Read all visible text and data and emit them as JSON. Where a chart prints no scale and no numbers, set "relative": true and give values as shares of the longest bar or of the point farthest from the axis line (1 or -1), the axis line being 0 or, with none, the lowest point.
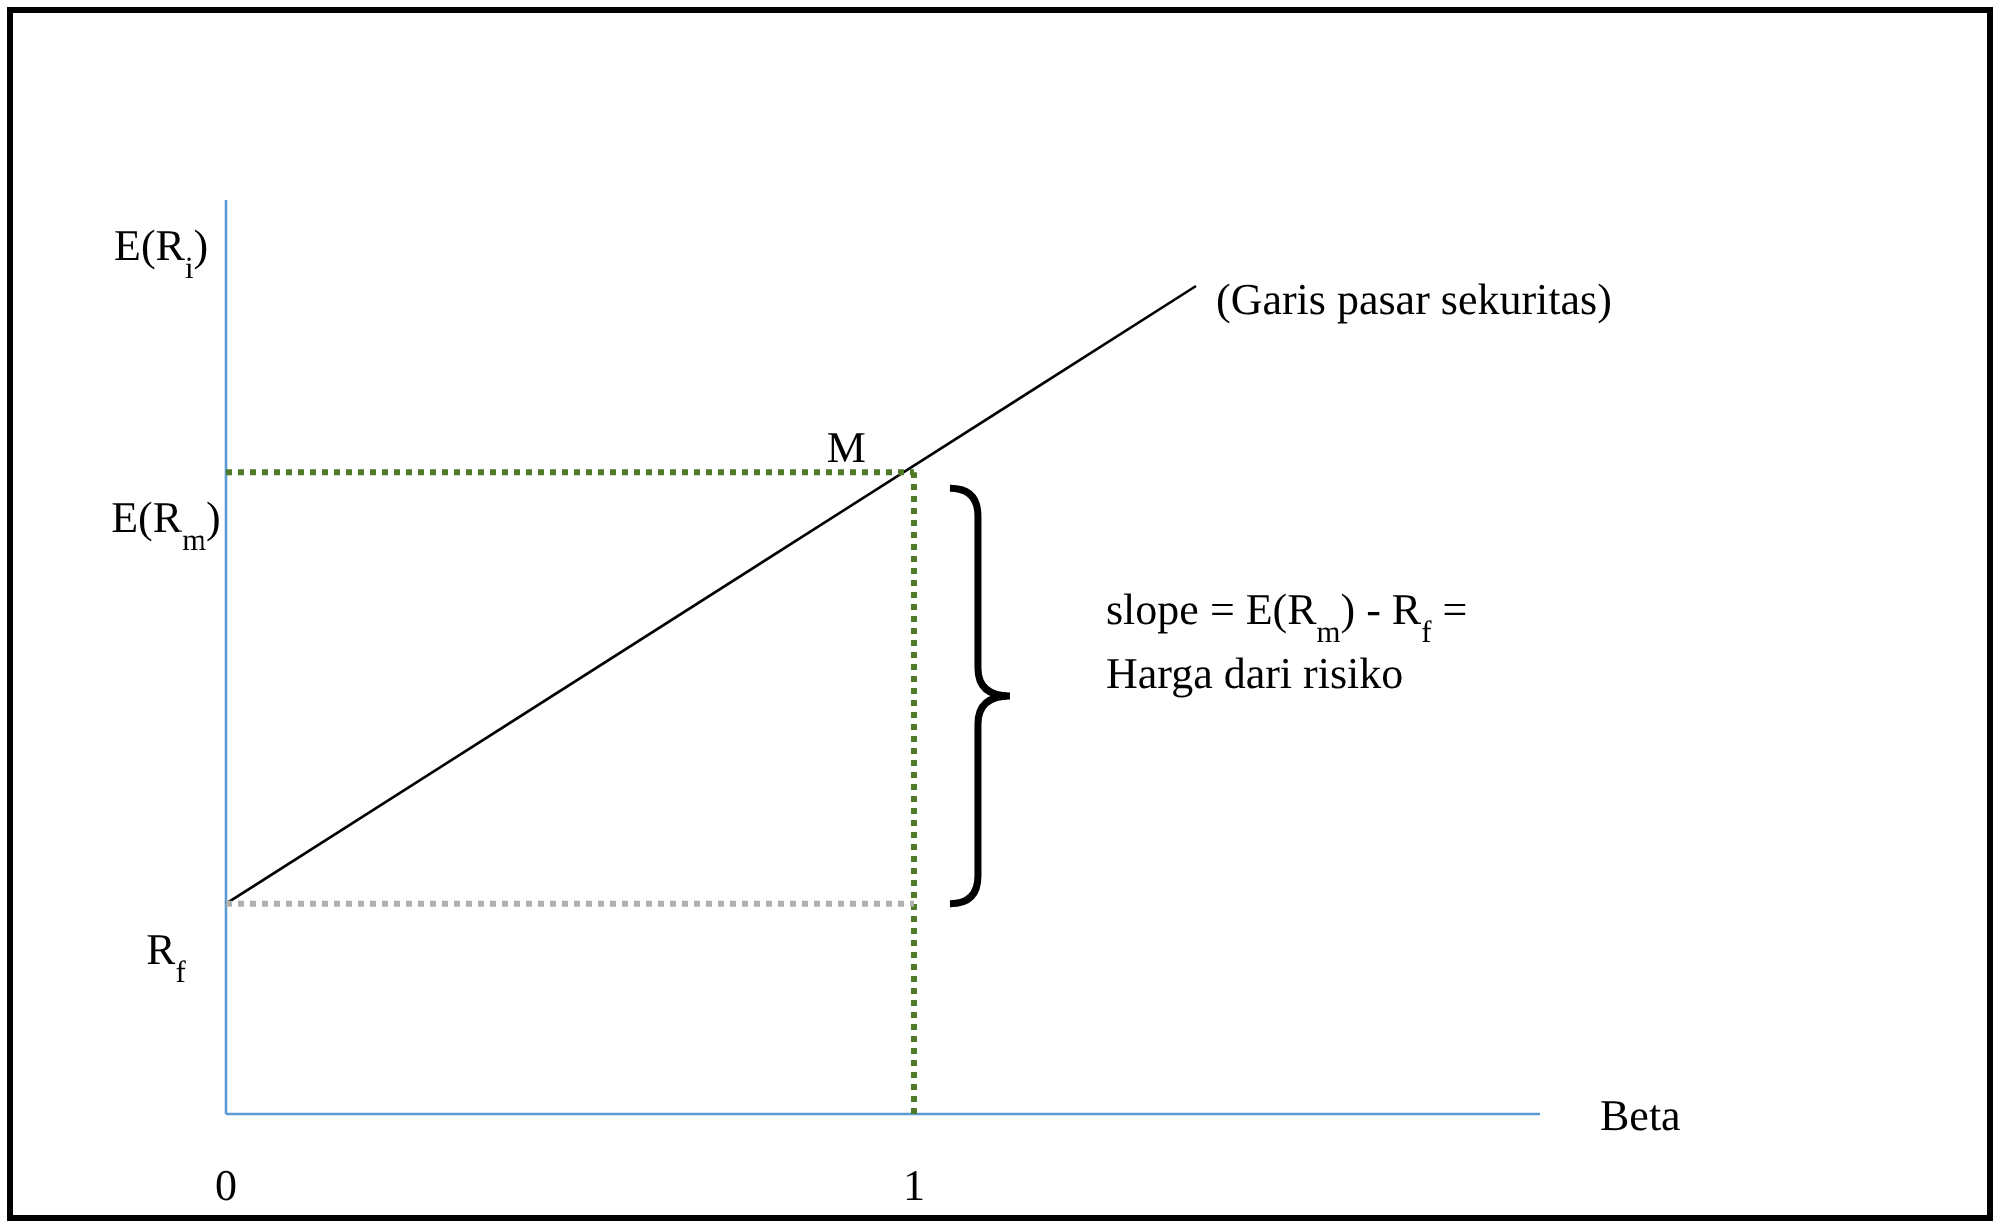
{
  "chart_data": {
    "type": "line",
    "relative": true,
    "xlabel": "Beta",
    "ylabel": "E(R$_{i}$)",
    "xlim": [
      0,
      1.91
    ],
    "xticks": [
      0,
      1
    ],
    "grid": false,
    "legend": false,
    "series": [
      {
        "name": "(Garis pasar sekuritas)",
        "color": "#000000",
        "x": [
          0,
          1.41
        ],
        "values": [
          0.254,
          1
        ],
        "line_style": "solid"
      },
      {
        "color": "#4f7a28",
        "x": [
          0,
          1
        ],
        "values": [
          0.775,
          0.775
        ],
        "line_style": "dotted"
      },
      {
        "color": "#4f7a28",
        "x": [
          1,
          1
        ],
        "values": [
          0,
          0.775
        ],
        "line_style": "dotted"
      },
      {
        "color": "#b0b0b0",
        "x": [
          0,
          1
        ],
        "values": [
          0.254,
          0.254
        ],
        "line_style": "dotted"
      }
    ],
    "annotations": [
      {
        "text": "M",
        "x": 1,
        "y": 0.775
      },
      "E(R$_{m}$)",
      "R$_{f}$",
      "slope = E(R$_{m}$) - R$_{f}$ =",
      "Harga dari risiko"
    ]
  }
}
